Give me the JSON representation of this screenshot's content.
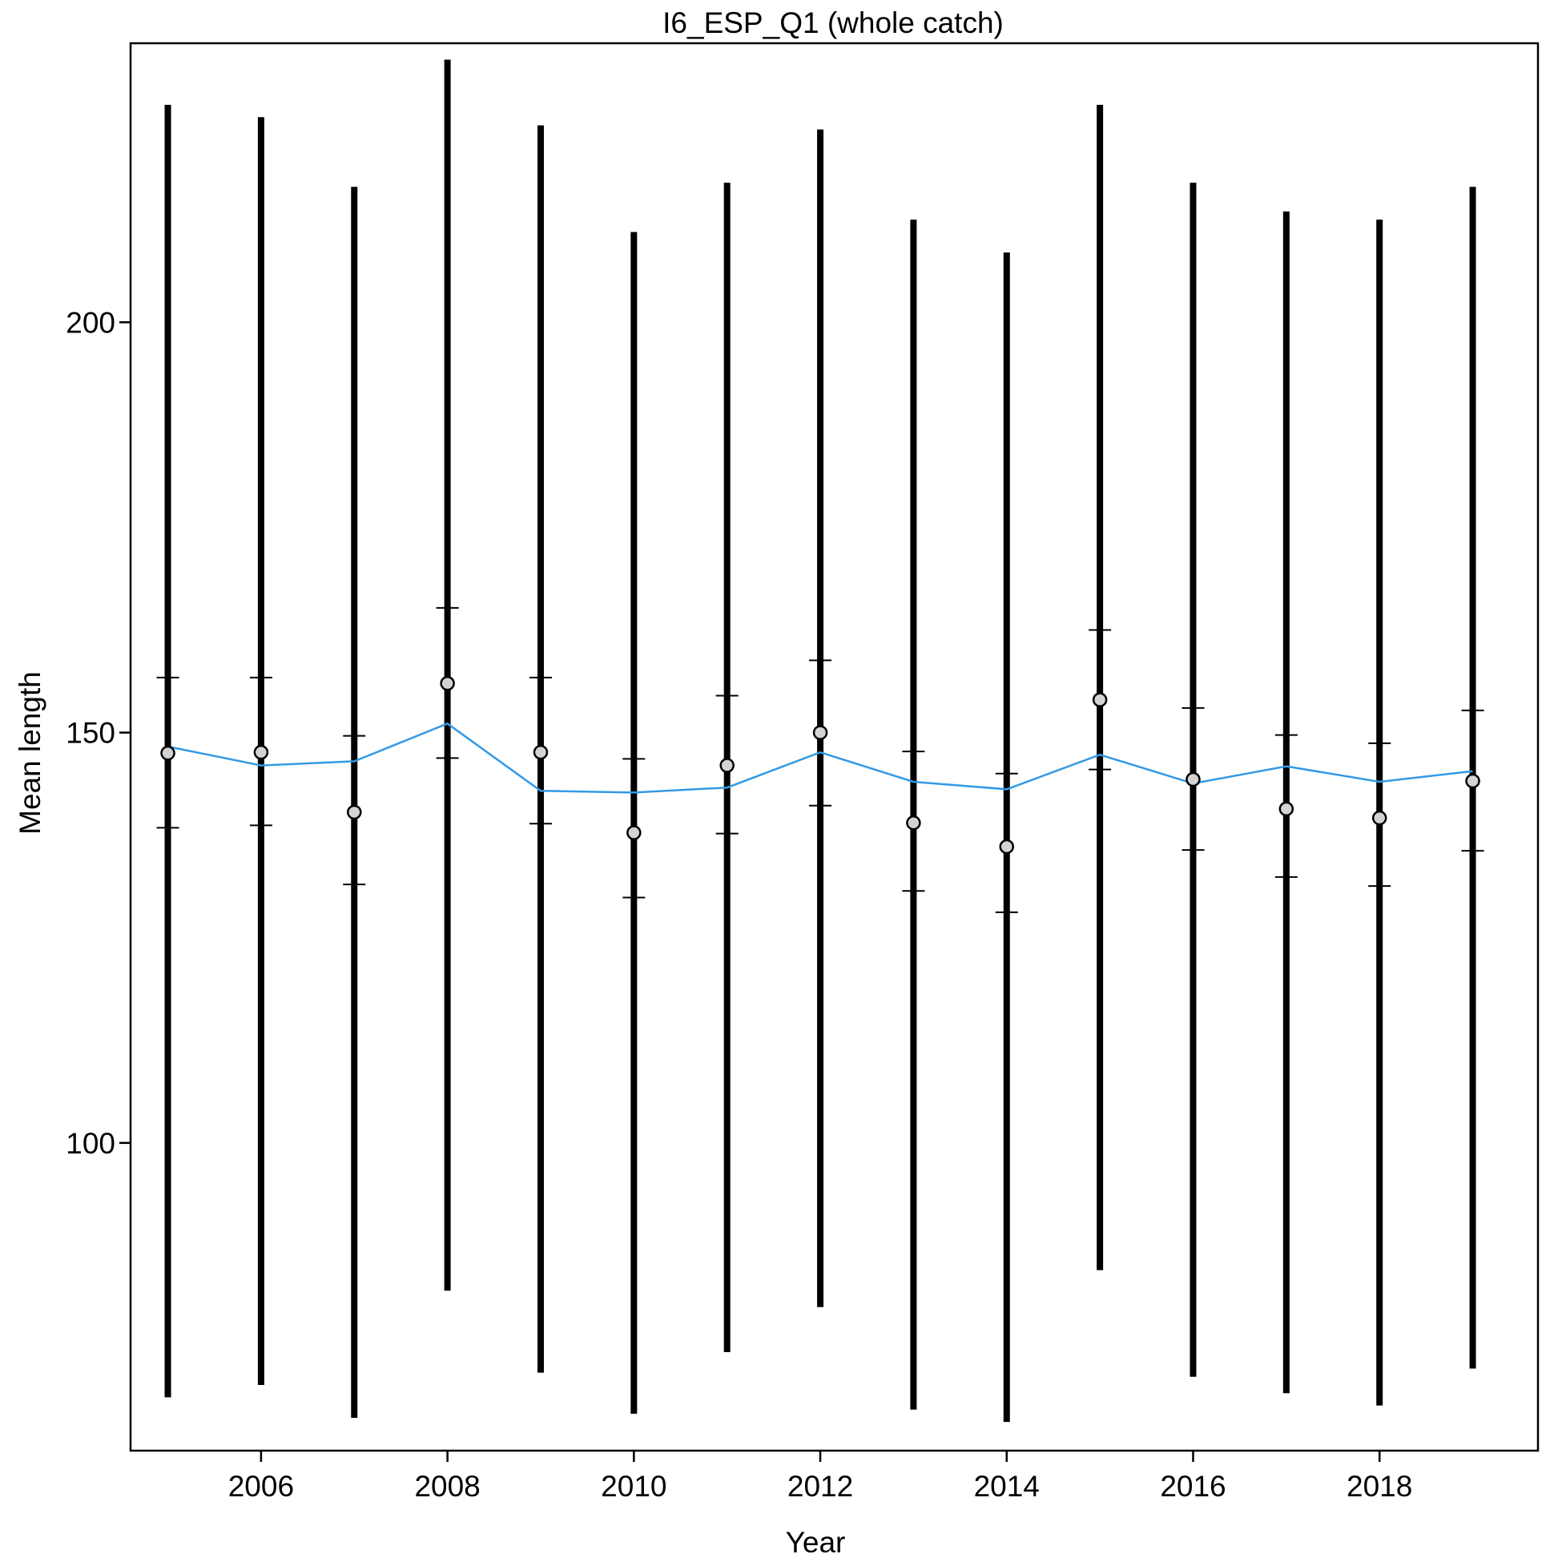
{
  "chart_data": {
    "type": "scatter",
    "title": "I6_ESP_Q1 (whole catch)",
    "xlabel": "Year",
    "ylabel": "Mean length",
    "xlim": [
      2004.6,
      2019.7
    ],
    "ylim": [
      62.5,
      234
    ],
    "x_ticks": [
      2006,
      2008,
      2010,
      2012,
      2014,
      2016,
      2018
    ],
    "x_tick_labels": [
      "2006",
      "2008",
      "2010",
      "2012",
      "2014",
      "2016",
      "2018"
    ],
    "y_ticks": [
      100,
      150,
      200
    ],
    "y_tick_labels": [
      "100",
      "150",
      "200"
    ],
    "grid": false,
    "colors": {
      "observed_mean_fill": "#d3d3d3",
      "expected_mean_line": "#3399e6",
      "interval_bars": "#000000"
    },
    "series": [
      {
        "marker": "circle",
        "x": [
          2005,
          2006,
          2007,
          2008,
          2009,
          2010,
          2011,
          2012,
          2013,
          2014,
          2015,
          2016,
          2017,
          2018,
          2019
        ],
        "observed_mean": [
          147.5,
          147.6,
          140.3,
          156.0,
          147.6,
          137.8,
          146.0,
          150.0,
          139.0,
          136.1,
          154.0,
          144.3,
          140.7,
          139.6,
          144.1
        ]
      },
      {
        "line": "expected_mean",
        "x": [
          2005,
          2006,
          2007,
          2008,
          2009,
          2010,
          2011,
          2012,
          2013,
          2014,
          2015,
          2016,
          2017,
          2018,
          2019
        ],
        "expected_mean": [
          148.3,
          146.0,
          146.5,
          151.1,
          142.9,
          142.7,
          143.3,
          147.6,
          144.0,
          143.1,
          147.3,
          143.8,
          145.9,
          144.0,
          145.3
        ]
      },
      {
        "bars": "whiskers",
        "x": [
          2005,
          2006,
          2007,
          2008,
          2009,
          2010,
          2011,
          2012,
          2013,
          2014,
          2015,
          2016,
          2017,
          2018,
          2019
        ],
        "inner_lower": [
          138.4,
          138.7,
          131.5,
          146.9,
          138.9,
          129.9,
          137.7,
          141.1,
          130.7,
          128.1,
          145.5,
          135.7,
          132.4,
          131.3,
          135.6
        ],
        "inner_upper": [
          156.7,
          156.7,
          149.6,
          165.2,
          156.7,
          146.8,
          154.5,
          158.8,
          147.7,
          145.0,
          162.5,
          153.0,
          149.7,
          148.7,
          152.7
        ],
        "outer_lower": [
          69.0,
          70.5,
          66.5,
          82.0,
          72.0,
          67.0,
          74.5,
          80.0,
          67.5,
          66.0,
          84.5,
          71.5,
          69.5,
          68.0,
          72.5
        ],
        "outer_upper": [
          226.5,
          225.0,
          216.5,
          232.0,
          224.0,
          211.0,
          217.0,
          223.5,
          212.5,
          208.5,
          226.5,
          217.0,
          213.5,
          212.5,
          216.5
        ]
      }
    ]
  }
}
